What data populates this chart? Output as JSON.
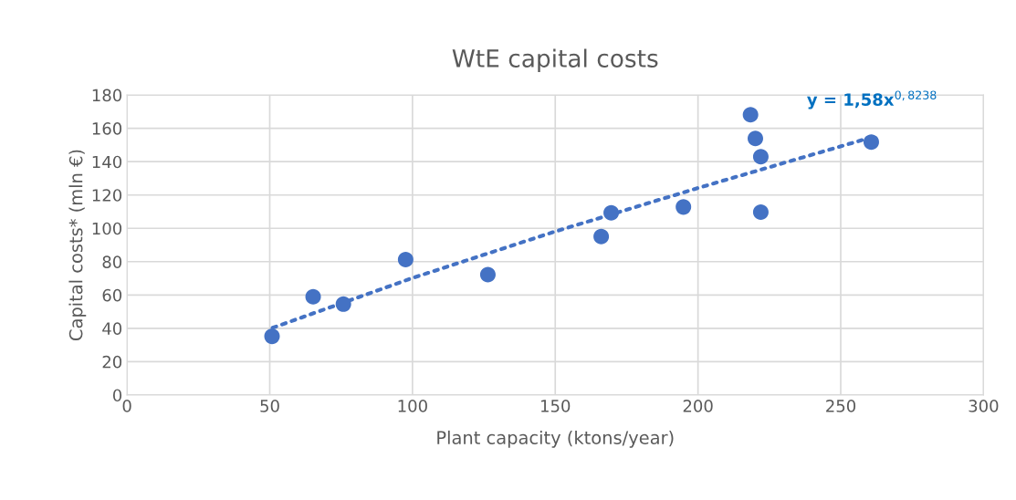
{
  "chart_data": {
    "type": "scatter",
    "title": "WtE capital costs",
    "xlabel": "Plant capacity (ktons/year)",
    "ylabel": "Capital costs* (mln €)",
    "series": [
      {
        "color": "#4472c4",
        "marker": "circle",
        "x": [
          50.8,
          65.2,
          75.8,
          97.6,
          126.4,
          166.1,
          169.6,
          194.9,
          218.4,
          220.1,
          222.0,
          222.0,
          260.7
        ],
        "values": [
          35.2,
          58.9,
          54.5,
          81.3,
          72.2,
          95.1,
          109.3,
          112.8,
          168.2,
          153.9,
          143.0,
          109.7,
          151.8
        ]
      },
      {
        "type": "line",
        "color": "#4472c4",
        "marker": "none",
        "line_style": "dotted",
        "x": [
          51,
          100,
          150,
          200,
          261
        ],
        "values": [
          40.3,
          70.2,
          98.1,
          124.2,
          154.7
        ]
      }
    ],
    "annotations": [
      {
        "text": "y = 1,58x$^{0,8238}$",
        "x": 261,
        "y": 154.7
      }
    ],
    "xlim": [
      0,
      300
    ],
    "xticks": [
      0,
      50,
      100,
      150,
      200,
      250,
      300
    ],
    "ylim": [
      0,
      180
    ],
    "yticks": [
      0,
      20,
      40,
      60,
      80,
      100,
      120,
      140,
      160,
      180
    ],
    "grid": true,
    "legend": false
  }
}
